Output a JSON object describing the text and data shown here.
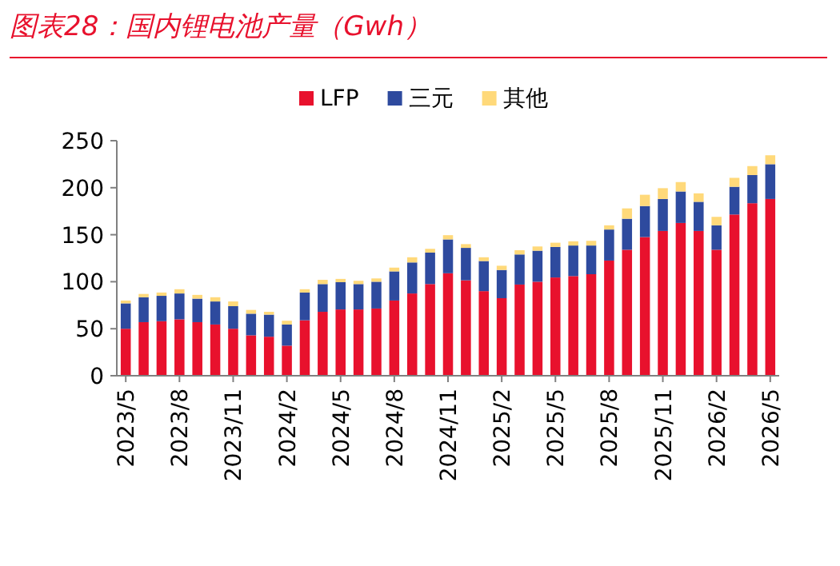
{
  "chart_data": {
    "type": "bar",
    "title": "图表28：国内锂电池产量（Gwh）",
    "stacked": true,
    "legend": "top",
    "categories": [
      "2023/5",
      null,
      null,
      "2023/8",
      null,
      null,
      "2023/11",
      null,
      null,
      "2024/2",
      null,
      null,
      "2024/5",
      null,
      null,
      "2024/8",
      null,
      null,
      "2024/11",
      null,
      null,
      "2025/2",
      null,
      null,
      "2025/5",
      null,
      null,
      "2025/8",
      null,
      null,
      "2025/11",
      null,
      null,
      "2026/2",
      null,
      null,
      "2026/5"
    ],
    "ylim": [
      0,
      250
    ],
    "yticks": [
      0,
      50,
      100,
      150,
      200,
      250
    ],
    "series": [
      {
        "name": "LFP",
        "color": "#e8112d",
        "values": [
          50,
          57,
          58,
          60,
          57,
          54.5,
          50,
          43,
          41.5,
          32,
          59,
          68,
          70.5,
          70.5,
          71.5,
          80,
          87.5,
          97.5,
          109,
          101.5,
          90,
          82.5,
          97,
          100,
          104.5,
          106,
          108,
          122.5,
          134,
          147.5,
          154,
          162.5,
          154,
          134,
          171.5,
          183.5,
          188
        ]
      },
      {
        "name": "三元",
        "color": "#2e4a9e",
        "values": [
          27,
          26.5,
          27,
          27.5,
          25,
          24.5,
          24,
          23,
          23.5,
          22.5,
          29.5,
          29.5,
          29,
          27,
          28.5,
          31,
          33,
          33.5,
          36,
          34.5,
          32,
          30,
          32,
          33,
          32.5,
          32.5,
          30.5,
          33,
          33,
          33,
          34,
          33.5,
          31,
          26,
          29.5,
          30,
          37
        ]
      },
      {
        "name": "其他",
        "color": "#ffd97a",
        "values": [
          3,
          3.5,
          3.5,
          4.5,
          4,
          4.5,
          5,
          4,
          3,
          4,
          3.5,
          4.5,
          3.5,
          3.5,
          3.5,
          4,
          5.5,
          4,
          4.5,
          4,
          4,
          4.5,
          4.5,
          4.5,
          4.5,
          4.5,
          5,
          4.5,
          11,
          12,
          11.5,
          10,
          9,
          9,
          9.5,
          9.5,
          9.5
        ]
      }
    ]
  }
}
